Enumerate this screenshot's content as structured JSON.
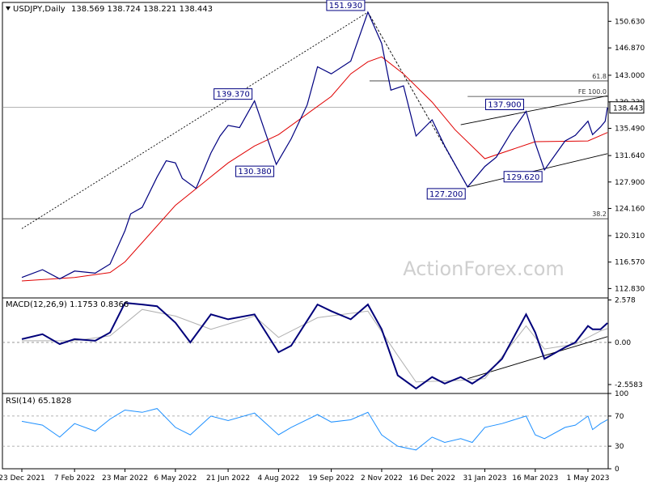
{
  "chart_data": [
    {
      "type": "line",
      "pane": "price",
      "title": "USDJPY,Daily",
      "ohlc_header": "138.569 138.724 138.221 138.443",
      "last_price": 138.443,
      "last_price_label": "138.443",
      "watermark": "ActionForex.com",
      "ylim": [
        111.5,
        153.3
      ],
      "yticks": [
        "150.630",
        "146.870",
        "143.000",
        "139.230",
        "135.490",
        "131.640",
        "127.900",
        "124.160",
        "120.310",
        "116.570",
        "112.830"
      ],
      "x_dates": [
        "23 Dec 2021",
        "7 Feb 2022",
        "23 Mar 2022",
        "6 May 2022",
        "21 Jun 2022",
        "4 Aug 2022",
        "19 Sep 2022",
        "2 Nov 2022",
        "16 Dec 2022",
        "31 Jan 2023",
        "16 Mar 2023",
        "1 May 2023"
      ],
      "series": [
        {
          "name": "",
          "color": "#000080",
          "points": [
            [
              "23 Dec 2021",
              114.4
            ],
            [
              "10 Jan 2022",
              115.5
            ],
            [
              "25 Jan 2022",
              114.2
            ],
            [
              "7 Feb 2022",
              115.3
            ],
            [
              "25 Feb 2022",
              115.0
            ],
            [
              "10 Mar 2022",
              116.3
            ],
            [
              "23 Mar 2022",
              121.0
            ],
            [
              "28 Mar 2022",
              123.4
            ],
            [
              "7 Apr 2022",
              124.3
            ],
            [
              "20 Apr 2022",
              128.6
            ],
            [
              "28 Apr 2022",
              130.9
            ],
            [
              "6 May 2022",
              130.6
            ],
            [
              "12 May 2022",
              128.4
            ],
            [
              "24 May 2022",
              127.0
            ],
            [
              "6 Jun 2022",
              132.0
            ],
            [
              "14 Jun 2022",
              134.4
            ],
            [
              "21 Jun 2022",
              135.9
            ],
            [
              "1 Jul 2022",
              135.6
            ],
            [
              "14 Jul 2022",
              139.37
            ],
            [
              "2 Aug 2022",
              130.38
            ],
            [
              "15 Aug 2022",
              134.0
            ],
            [
              "29 Aug 2022",
              138.8
            ],
            [
              "7 Sep 2022",
              144.2
            ],
            [
              "19 Sep 2022",
              143.2
            ],
            [
              "6 Oct 2022",
              145.0
            ],
            [
              "21 Oct 2022",
              151.93
            ],
            [
              "2 Nov 2022",
              147.5
            ],
            [
              "10 Nov 2022",
              140.9
            ],
            [
              "21 Nov 2022",
              141.5
            ],
            [
              "2 Dec 2022",
              134.4
            ],
            [
              "16 Dec 2022",
              136.7
            ],
            [
              "27 Dec 2022",
              133.0
            ],
            [
              "16 Jan 2023",
              127.2
            ],
            [
              "31 Jan 2023",
              130.1
            ],
            [
              "10 Feb 2023",
              131.4
            ],
            [
              "23 Feb 2023",
              134.9
            ],
            [
              "8 Mar 2023",
              137.9
            ],
            [
              "16 Mar 2023",
              133.4
            ],
            [
              "24 Mar 2023",
              129.62
            ],
            [
              "11 Apr 2023",
              133.7
            ],
            [
              "20 Apr 2023",
              134.5
            ],
            [
              "1 May 2023",
              136.5
            ],
            [
              "5 May 2023",
              134.6
            ],
            [
              "12 May 2023",
              135.7
            ],
            [
              "16 May 2023",
              136.5
            ],
            [
              "18 May 2023",
              138.443
            ]
          ]
        },
        {
          "name": "",
          "color": "#e00000",
          "points": [
            [
              "23 Dec 2021",
              113.9
            ],
            [
              "7 Feb 2022",
              114.4
            ],
            [
              "10 Mar 2022",
              115.1
            ],
            [
              "23 Mar 2022",
              116.6
            ],
            [
              "6 May 2022",
              124.6
            ],
            [
              "21 Jun 2022",
              130.6
            ],
            [
              "14 Jul 2022",
              133.0
            ],
            [
              "4 Aug 2022",
              134.6
            ],
            [
              "19 Sep 2022",
              140.0
            ],
            [
              "6 Oct 2022",
              143.2
            ],
            [
              "21 Oct 2022",
              144.9
            ],
            [
              "2 Nov 2022",
              145.6
            ],
            [
              "21 Nov 2022",
              143.2
            ],
            [
              "16 Dec 2022",
              139.2
            ],
            [
              "5 Jan 2023",
              135.3
            ],
            [
              "31 Jan 2023",
              131.2
            ],
            [
              "16 Mar 2023",
              133.6
            ],
            [
              "1 May 2023",
              133.7
            ],
            [
              "18 May 2023",
              134.9
            ]
          ]
        }
      ],
      "annotations": [
        {
          "label": "151.930",
          "date": "21 Oct 2022",
          "value": 151.93,
          "pos": "above"
        },
        {
          "label": "139.370",
          "date": "14 Jul 2022",
          "value": 139.37,
          "pos": "above-left"
        },
        {
          "label": "130.380",
          "date": "2 Aug 2022",
          "value": 130.38,
          "pos": "below-left"
        },
        {
          "label": "137.900",
          "date": "8 Mar 2023",
          "value": 137.9,
          "pos": "above-left"
        },
        {
          "label": "127.200",
          "date": "16 Jan 2023",
          "value": 127.2,
          "pos": "below-left"
        },
        {
          "label": "129.620",
          "date": "24 Mar 2023",
          "value": 129.62,
          "pos": "below-left"
        }
      ],
      "levels": [
        {
          "label": "61.8",
          "value": 142.2
        },
        {
          "label": "FE 100.0",
          "value": 140.0
        },
        {
          "label": "38.2",
          "value": 122.7
        }
      ],
      "trendlines": [
        {
          "style": "dotted",
          "from": [
            "23 Dec 2021",
            121.3
          ],
          "to": [
            "21 Oct 2022",
            151.93
          ]
        },
        {
          "style": "dashed",
          "from": [
            "21 Oct 2022",
            151.93
          ],
          "to": [
            "16 Jan 2023",
            127.2
          ]
        },
        {
          "style": "solid",
          "from": [
            "16 Jan 2023",
            127.2
          ],
          "to": [
            "18 May 2023",
            131.9
          ]
        },
        {
          "style": "solid",
          "from": [
            "10 Jan 2023",
            136.0
          ],
          "to": [
            "18 May 2023",
            140.1
          ]
        }
      ]
    },
    {
      "type": "line",
      "pane": "macd",
      "title": "MACD(12,26,9) 1.1753 0.8366",
      "ylim": [
        -3.1,
        2.7
      ],
      "yticks": [
        "2.578",
        "0.00",
        "-2.5583"
      ],
      "series": [
        {
          "name": "",
          "color": "#00007a",
          "points": [
            [
              "23 Dec 2021",
              0.2
            ],
            [
              "10 Jan 2022",
              0.5
            ],
            [
              "25 Jan 2022",
              -0.1
            ],
            [
              "7 Feb 2022",
              0.2
            ],
            [
              "25 Feb 2022",
              0.1
            ],
            [
              "10 Mar 2022",
              0.6
            ],
            [
              "23 Mar 2022",
              2.4
            ],
            [
              "7 Apr 2022",
              2.3
            ],
            [
              "20 Apr 2022",
              2.2
            ],
            [
              "6 May 2022",
              1.2
            ],
            [
              "19 May 2022",
              0.0
            ],
            [
              "6 Jun 2022",
              1.7
            ],
            [
              "21 Jun 2022",
              1.4
            ],
            [
              "14 Jul 2022",
              1.7
            ],
            [
              "4 Aug 2022",
              -0.6
            ],
            [
              "15 Aug 2022",
              -0.2
            ],
            [
              "7 Sep 2022",
              2.3
            ],
            [
              "19 Sep 2022",
              1.9
            ],
            [
              "6 Oct 2022",
              1.4
            ],
            [
              "21 Oct 2022",
              2.3
            ],
            [
              "2 Nov 2022",
              0.8
            ],
            [
              "16 Nov 2022",
              -2.0
            ],
            [
              "2 Dec 2022",
              -2.8
            ],
            [
              "16 Dec 2022",
              -2.1
            ],
            [
              "27 Dec 2022",
              -2.5
            ],
            [
              "10 Jan 2023",
              -2.1
            ],
            [
              "20 Jan 2023",
              -2.5
            ],
            [
              "31 Jan 2023",
              -2.0
            ],
            [
              "15 Feb 2023",
              -1.0
            ],
            [
              "8 Mar 2023",
              1.7
            ],
            [
              "16 Mar 2023",
              0.6
            ],
            [
              "24 Mar 2023",
              -1.0
            ],
            [
              "11 Apr 2023",
              -0.3
            ],
            [
              "20 Apr 2023",
              0.0
            ],
            [
              "1 May 2023",
              1.0
            ],
            [
              "5 May 2023",
              0.8
            ],
            [
              "12 May 2023",
              0.8
            ],
            [
              "18 May 2023",
              1.1753
            ]
          ]
        },
        {
          "name": "",
          "color": "#b0b0b0",
          "points": [
            [
              "23 Dec 2021",
              0.1
            ],
            [
              "7 Feb 2022",
              0.1
            ],
            [
              "10 Mar 2022",
              0.4
            ],
            [
              "7 Apr 2022",
              2.0
            ],
            [
              "6 May 2022",
              1.6
            ],
            [
              "6 Jun 2022",
              0.8
            ],
            [
              "14 Jul 2022",
              1.6
            ],
            [
              "4 Aug 2022",
              0.3
            ],
            [
              "7 Sep 2022",
              1.5
            ],
            [
              "21 Oct 2022",
              1.9
            ],
            [
              "16 Nov 2022",
              -0.8
            ],
            [
              "2 Dec 2022",
              -2.4
            ],
            [
              "10 Jan 2023",
              -2.3
            ],
            [
              "31 Jan 2023",
              -2.2
            ],
            [
              "8 Mar 2023",
              1.0
            ],
            [
              "24 Mar 2023",
              -0.4
            ],
            [
              "20 Apr 2023",
              -0.1
            ],
            [
              "12 May 2023",
              0.7
            ],
            [
              "18 May 2023",
              0.8366
            ]
          ]
        }
      ],
      "trendlines": [
        {
          "style": "solid",
          "from": [
            "16 Jan 2023",
            -2.2
          ],
          "to": [
            "18 May 2023",
            0.35
          ]
        }
      ]
    },
    {
      "type": "line",
      "pane": "rsi",
      "title": "RSI(14) 65.1828",
      "ylim": [
        0,
        100
      ],
      "yticks": [
        "100",
        "70",
        "30",
        "0"
      ],
      "levels": [
        70,
        30
      ],
      "series": [
        {
          "name": "",
          "color": "#1e90ff",
          "points": [
            [
              "23 Dec 2021",
              63
            ],
            [
              "10 Jan 2022",
              58
            ],
            [
              "25 Jan 2022",
              42
            ],
            [
              "7 Feb 2022",
              60
            ],
            [
              "25 Feb 2022",
              50
            ],
            [
              "10 Mar 2022",
              66
            ],
            [
              "23 Mar 2022",
              78
            ],
            [
              "7 Apr 2022",
              75
            ],
            [
              "20 Apr 2022",
              80
            ],
            [
              "6 May 2022",
              55
            ],
            [
              "19 May 2022",
              45
            ],
            [
              "6 Jun 2022",
              70
            ],
            [
              "21 Jun 2022",
              64
            ],
            [
              "14 Jul 2022",
              74
            ],
            [
              "4 Aug 2022",
              45
            ],
            [
              "15 Aug 2022",
              55
            ],
            [
              "7 Sep 2022",
              72
            ],
            [
              "19 Sep 2022",
              62
            ],
            [
              "6 Oct 2022",
              65
            ],
            [
              "21 Oct 2022",
              75
            ],
            [
              "2 Nov 2022",
              45
            ],
            [
              "16 Nov 2022",
              30
            ],
            [
              "2 Dec 2022",
              25
            ],
            [
              "16 Dec 2022",
              42
            ],
            [
              "27 Dec 2022",
              35
            ],
            [
              "10 Jan 2023",
              40
            ],
            [
              "20 Jan 2023",
              35
            ],
            [
              "31 Jan 2023",
              55
            ],
            [
              "15 Feb 2023",
              60
            ],
            [
              "8 Mar 2023",
              70
            ],
            [
              "16 Mar 2023",
              45
            ],
            [
              "24 Mar 2023",
              40
            ],
            [
              "11 Apr 2023",
              55
            ],
            [
              "20 Apr 2023",
              58
            ],
            [
              "1 May 2023",
              70
            ],
            [
              "5 May 2023",
              52
            ],
            [
              "12 May 2023",
              60
            ],
            [
              "18 May 2023",
              65.18
            ]
          ]
        }
      ]
    }
  ]
}
